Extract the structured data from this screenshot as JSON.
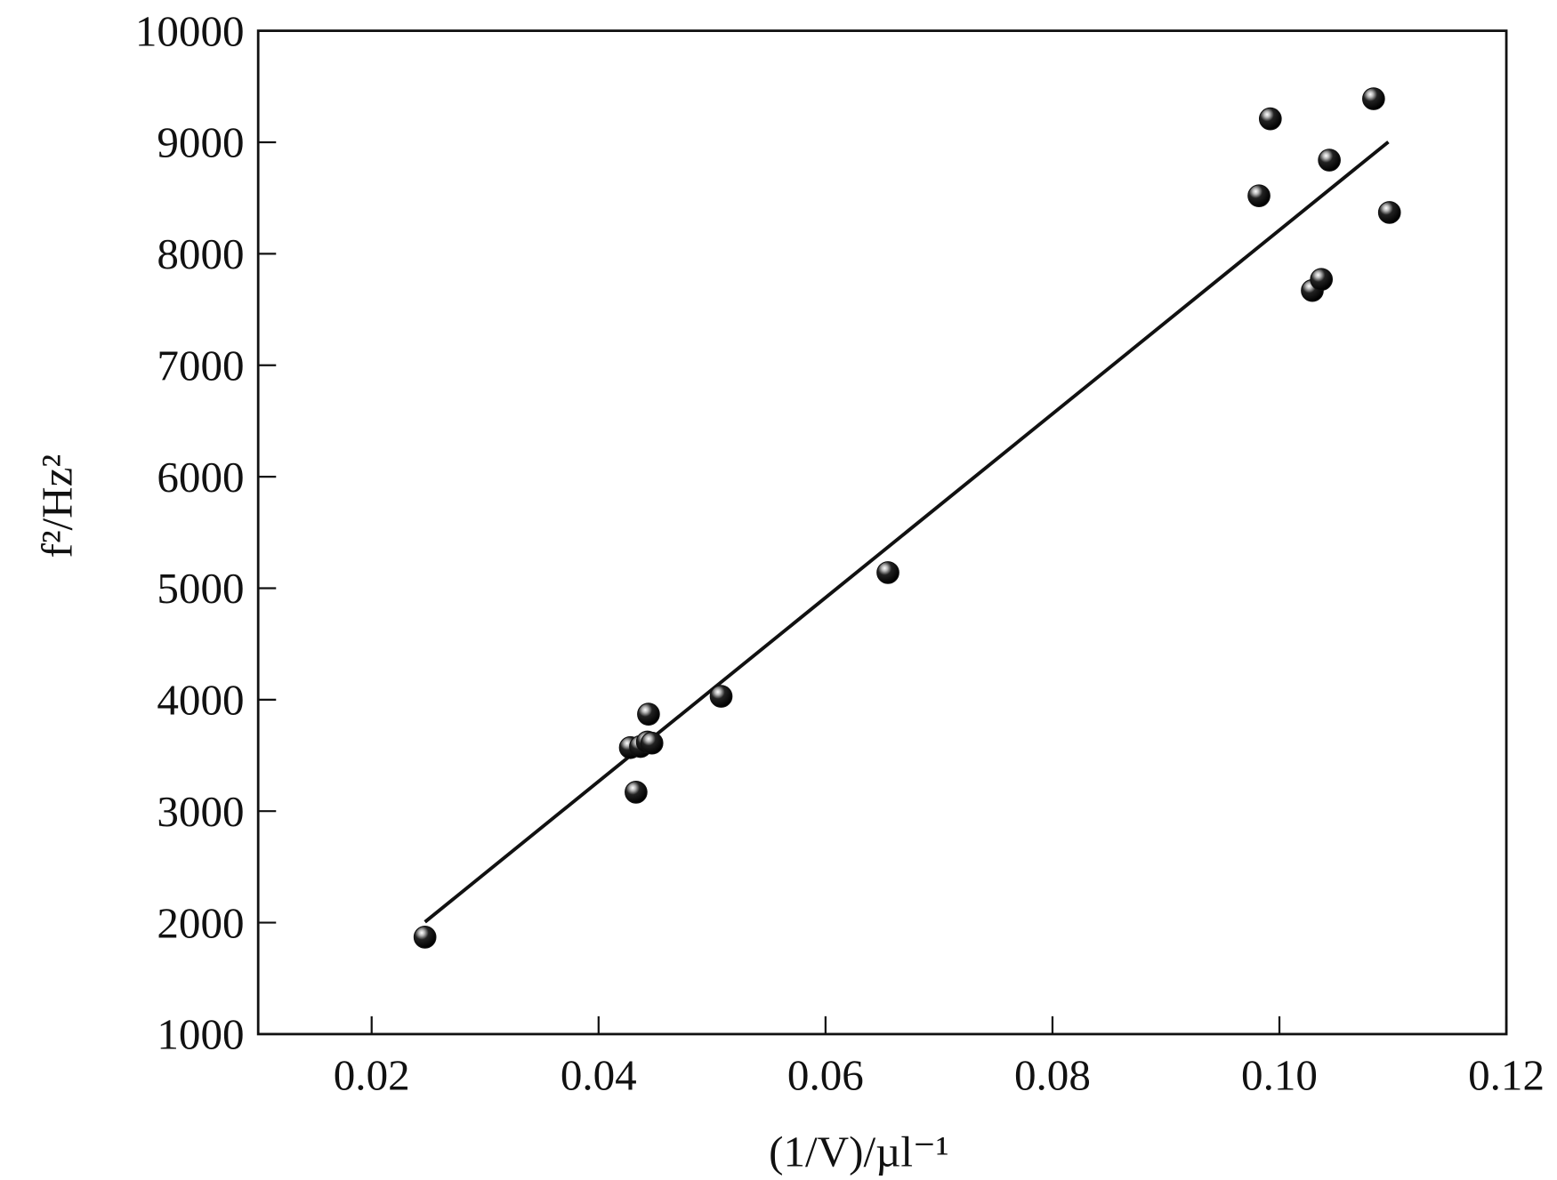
{
  "chart_data": {
    "type": "scatter",
    "title": "",
    "xlabel": "(1/V)/µl⁻¹",
    "ylabel": "f²/Hz²",
    "xlim": [
      0.01,
      0.12
    ],
    "ylim": [
      1000,
      10000
    ],
    "xticks": [
      0.02,
      0.04,
      0.06,
      0.08,
      0.1,
      0.12
    ],
    "xtick_labels": [
      "0.02",
      "0.04",
      "0.06",
      "0.08",
      "0.10",
      "0.12"
    ],
    "yticks": [
      1000,
      2000,
      3000,
      4000,
      5000,
      6000,
      7000,
      8000,
      9000,
      10000
    ],
    "ytick_labels": [
      "1000",
      "2000",
      "3000",
      "4000",
      "5000",
      "6000",
      "7000",
      "8000",
      "9000",
      "10000"
    ],
    "grid": false,
    "marker_color": "#111111",
    "line_color": "#111111",
    "points": [
      {
        "x": 0.0247,
        "y": 1870
      },
      {
        "x": 0.0428,
        "y": 3570
      },
      {
        "x": 0.0437,
        "y": 3580
      },
      {
        "x": 0.0443,
        "y": 3620
      },
      {
        "x": 0.0447,
        "y": 3610
      },
      {
        "x": 0.0444,
        "y": 3870
      },
      {
        "x": 0.0433,
        "y": 3170
      },
      {
        "x": 0.0508,
        "y": 4030
      },
      {
        "x": 0.0655,
        "y": 5140
      },
      {
        "x": 0.0982,
        "y": 8520
      },
      {
        "x": 0.0992,
        "y": 9210
      },
      {
        "x": 0.1044,
        "y": 8840
      },
      {
        "x": 0.1083,
        "y": 9390
      },
      {
        "x": 0.1097,
        "y": 8370
      },
      {
        "x": 0.1029,
        "y": 7670
      },
      {
        "x": 0.1037,
        "y": 7770
      }
    ],
    "fit_line": {
      "x": [
        0.0247,
        0.1096
      ],
      "y": [
        2006,
        9003
      ]
    }
  }
}
